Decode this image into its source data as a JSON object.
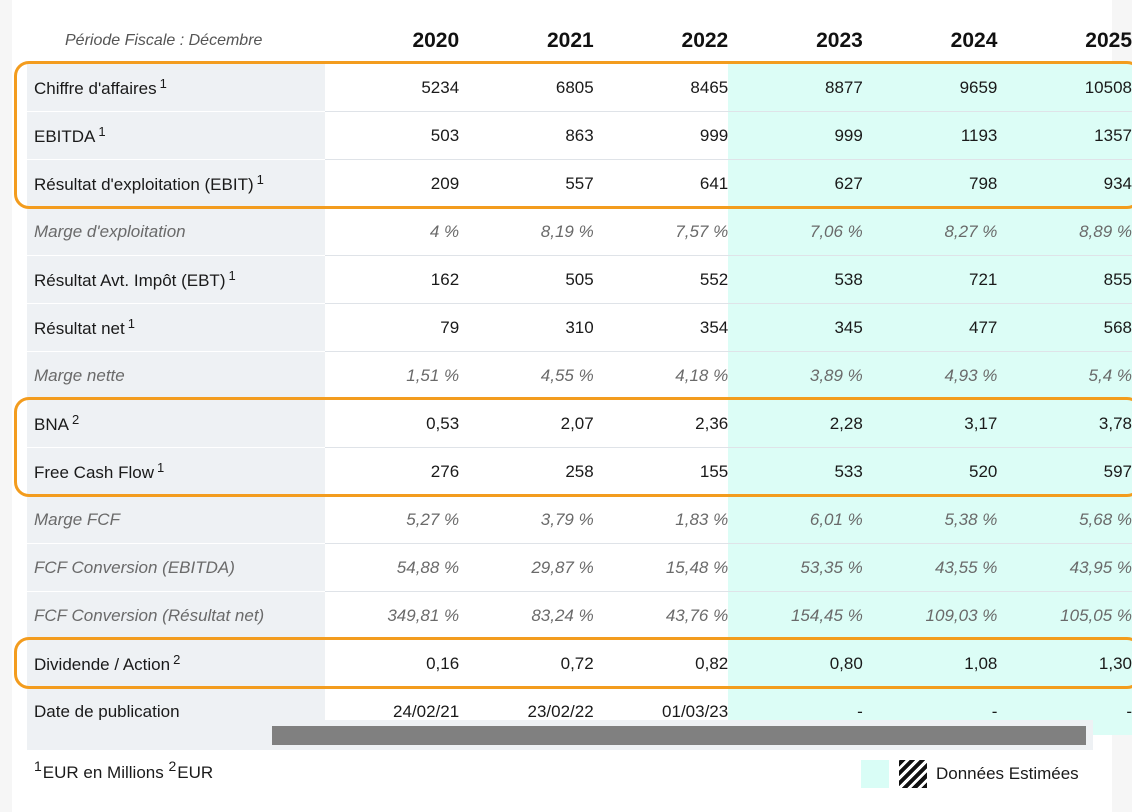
{
  "header": {
    "period_label": "Période Fiscale : Décembre",
    "years": [
      "2020",
      "2021",
      "2022",
      "2023",
      "2024",
      "2025"
    ],
    "estimated_from_index": 3
  },
  "rows": [
    {
      "label": "Chiffre d'affaires",
      "sup": "1",
      "italic": false,
      "values": [
        "5234",
        "6805",
        "8465",
        "8877",
        "9659",
        "10508"
      ]
    },
    {
      "label": "EBITDA",
      "sup": "1",
      "italic": false,
      "values": [
        "503",
        "863",
        "999",
        "999",
        "1193",
        "1357"
      ]
    },
    {
      "label": "Résultat d'exploitation (EBIT)",
      "sup": "1",
      "italic": false,
      "values": [
        "209",
        "557",
        "641",
        "627",
        "798",
        "934"
      ]
    },
    {
      "label": "Marge d'exploitation",
      "sup": "",
      "italic": true,
      "values": [
        "4 %",
        "8,19 %",
        "7,57 %",
        "7,06 %",
        "8,27 %",
        "8,89 %"
      ]
    },
    {
      "label": "Résultat Avt. Impôt (EBT)",
      "sup": "1",
      "italic": false,
      "values": [
        "162",
        "505",
        "552",
        "538",
        "721",
        "855"
      ]
    },
    {
      "label": "Résultat net",
      "sup": "1",
      "italic": false,
      "values": [
        "79",
        "310",
        "354",
        "345",
        "477",
        "568"
      ]
    },
    {
      "label": "Marge nette",
      "sup": "",
      "italic": true,
      "values": [
        "1,51 %",
        "4,55 %",
        "4,18 %",
        "3,89 %",
        "4,93 %",
        "5,4 %"
      ]
    },
    {
      "label": "BNA",
      "sup": "2",
      "italic": false,
      "values": [
        "0,53",
        "2,07",
        "2,36",
        "2,28",
        "3,17",
        "3,78"
      ]
    },
    {
      "label": "Free Cash Flow",
      "sup": "1",
      "italic": false,
      "values": [
        "276",
        "258",
        "155",
        "533",
        "520",
        "597"
      ]
    },
    {
      "label": "Marge FCF",
      "sup": "",
      "italic": true,
      "values": [
        "5,27 %",
        "3,79 %",
        "1,83 %",
        "6,01 %",
        "5,38 %",
        "5,68 %"
      ]
    },
    {
      "label": "FCF Conversion (EBITDA)",
      "sup": "",
      "italic": true,
      "values": [
        "54,88 %",
        "29,87 %",
        "15,48 %",
        "53,35 %",
        "43,55 %",
        "43,95 %"
      ]
    },
    {
      "label": "FCF Conversion (Résultat net)",
      "sup": "",
      "italic": true,
      "values": [
        "349,81 %",
        "83,24 %",
        "43,76 %",
        "154,45 %",
        "109,03 %",
        "105,05 %"
      ]
    },
    {
      "label": "Dividende / Action",
      "sup": "2",
      "italic": false,
      "values": [
        "0,16",
        "0,72",
        "0,82",
        "0,80",
        "1,08",
        "1,30"
      ]
    },
    {
      "label": "Date de publication",
      "sup": "",
      "italic": false,
      "values": [
        "24/02/21",
        "23/02/22",
        "01/03/23",
        "-",
        "-",
        "-"
      ]
    }
  ],
  "highlight_groups": [
    [
      0,
      2
    ],
    [
      7,
      8
    ],
    [
      12,
      12
    ]
  ],
  "colors": {
    "estimated_bg": "#dcfdf6",
    "highlight_border": "#f39c1e",
    "label_bg": "#eef1f4"
  },
  "footnote": {
    "sup1": "1",
    "text1": "EUR en Millions",
    "sup2": "2",
    "text2": "EUR"
  },
  "legend": {
    "label": "Données Estimées",
    "icons": [
      "estimated-swatch-icon",
      "hatched-swatch-icon"
    ]
  }
}
